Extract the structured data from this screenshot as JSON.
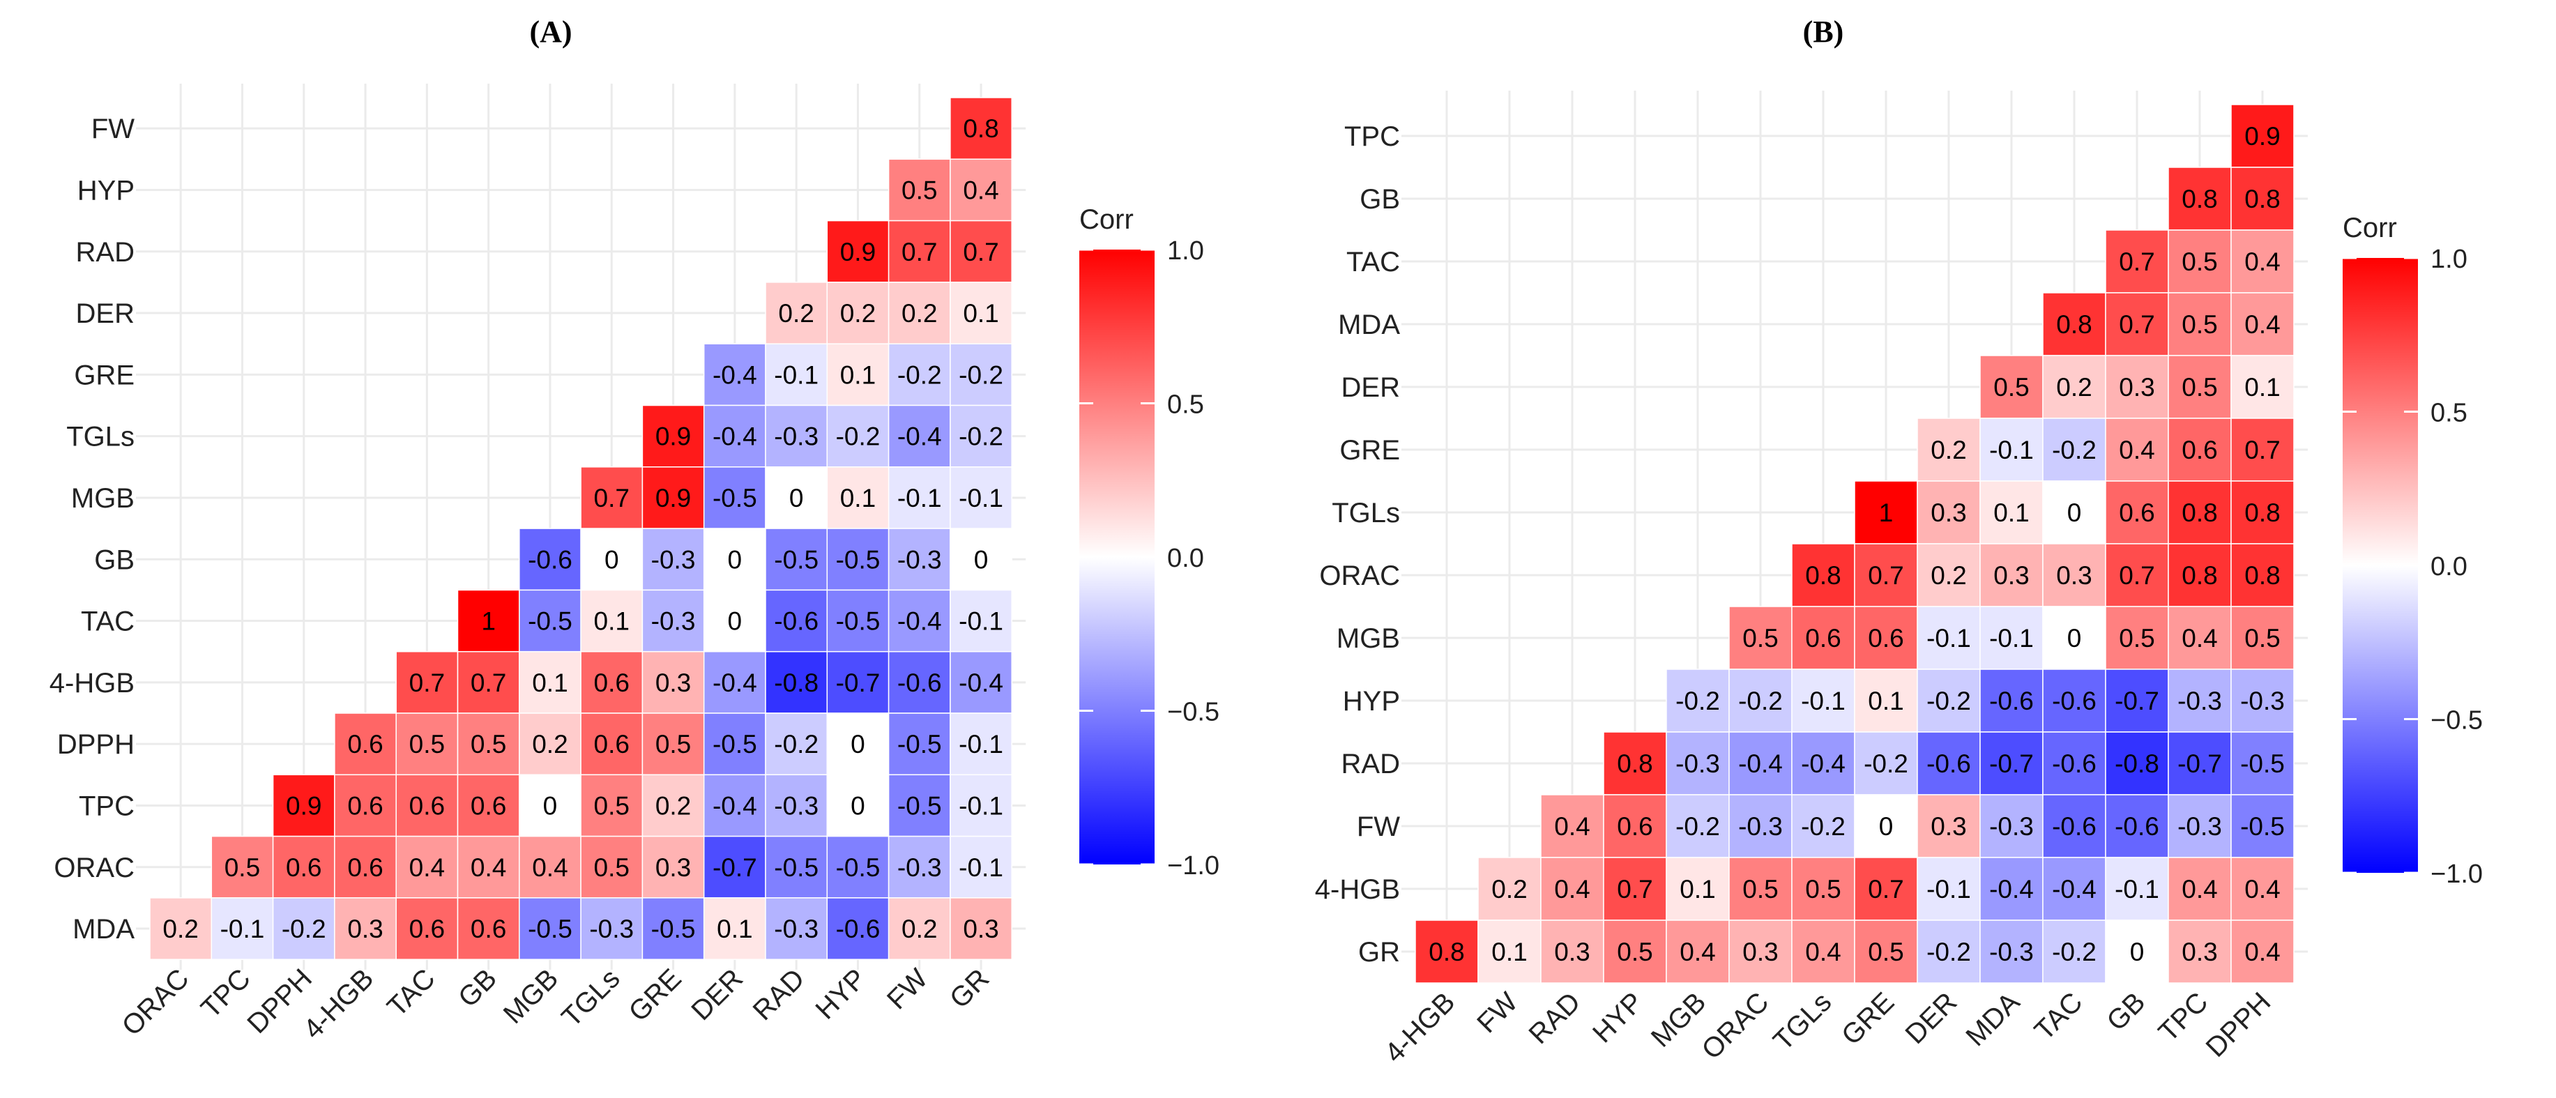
{
  "figure": {
    "panels": [
      "(A)",
      "(B)"
    ],
    "legend_title": "Corr",
    "legend_ticks": [
      "1.0",
      "0.5",
      "0.0",
      "−0.5",
      "−1.0"
    ]
  },
  "chart_data": [
    {
      "type": "heatmap",
      "title": "(A)",
      "layout": "lower-triangle correlation matrix",
      "rows_top_to_bottom": [
        "FW",
        "HYP",
        "RAD",
        "DER",
        "GRE",
        "TGLs",
        "MGB",
        "GB",
        "TAC",
        "4-HGB",
        "DPPH",
        "TPC",
        "ORAC",
        "MDA"
      ],
      "columns": [
        "ORAC",
        "TPC",
        "DPPH",
        "4-HGB",
        "TAC",
        "GB",
        "MGB",
        "TGLs",
        "GRE",
        "DER",
        "RAD",
        "HYP",
        "FW",
        "GR"
      ],
      "values": [
        [
          0.8
        ],
        [
          0.5,
          0.4
        ],
        [
          0.9,
          0.7,
          0.7
        ],
        [
          0.2,
          0.2,
          0.2,
          0.1
        ],
        [
          -0.4,
          -0.1,
          0.1,
          -0.2,
          -0.2
        ],
        [
          0.9,
          -0.4,
          -0.3,
          -0.2,
          -0.4,
          -0.2
        ],
        [
          0.7,
          0.9,
          -0.5,
          0,
          0.1,
          -0.1,
          -0.1
        ],
        [
          -0.6,
          0,
          -0.3,
          0,
          -0.5,
          -0.5,
          -0.3,
          0
        ],
        [
          1,
          -0.5,
          0.1,
          -0.3,
          0,
          -0.6,
          -0.5,
          -0.4,
          -0.1
        ],
        [
          0.7,
          0.7,
          0.1,
          0.6,
          0.3,
          -0.4,
          -0.8,
          -0.7,
          -0.6,
          -0.4
        ],
        [
          0.6,
          0.5,
          0.5,
          0.2,
          0.6,
          0.5,
          -0.5,
          -0.2,
          0,
          -0.5,
          -0.1
        ],
        [
          0.9,
          0.6,
          0.6,
          0.6,
          0,
          0.5,
          0.2,
          -0.4,
          -0.3,
          0,
          -0.5,
          -0.1
        ],
        [
          0.5,
          0.6,
          0.6,
          0.4,
          0.4,
          0.4,
          0.5,
          0.3,
          -0.7,
          -0.5,
          -0.5,
          -0.3,
          -0.1
        ],
        [
          0.2,
          -0.1,
          -0.2,
          0.3,
          0.6,
          0.6,
          -0.5,
          -0.3,
          -0.5,
          0.1,
          -0.3,
          -0.6,
          0.2,
          0.3
        ]
      ],
      "legend": {
        "title": "Corr",
        "range": [
          -1,
          1
        ],
        "colors": [
          "#0000ff",
          "#ffffff",
          "#ff0000"
        ]
      }
    },
    {
      "type": "heatmap",
      "title": "(B)",
      "layout": "lower-triangle correlation matrix",
      "rows_top_to_bottom": [
        "TPC",
        "GB",
        "TAC",
        "MDA",
        "DER",
        "GRE",
        "TGLs",
        "ORAC",
        "MGB",
        "HYP",
        "RAD",
        "FW",
        "4-HGB",
        "GR"
      ],
      "columns": [
        "4-HGB",
        "FW",
        "RAD",
        "HYP",
        "MGB",
        "ORAC",
        "TGLs",
        "GRE",
        "DER",
        "MDA",
        "TAC",
        "GB",
        "TPC",
        "DPPH"
      ],
      "values": [
        [
          0.9
        ],
        [
          0.8,
          0.8
        ],
        [
          0.7,
          0.5,
          0.4
        ],
        [
          0.8,
          0.7,
          0.5,
          0.4
        ],
        [
          0.5,
          0.2,
          0.3,
          0.5,
          0.1
        ],
        [
          0.2,
          -0.1,
          -0.2,
          0.4,
          0.6,
          0.7
        ],
        [
          1,
          0.3,
          0.1,
          0,
          0.6,
          0.8,
          0.8
        ],
        [
          0.8,
          0.7,
          0.2,
          0.3,
          0.3,
          0.7,
          0.8,
          0.8
        ],
        [
          0.5,
          0.6,
          0.6,
          -0.1,
          -0.1,
          0,
          0.5,
          0.4,
          0.5
        ],
        [
          -0.2,
          -0.2,
          -0.1,
          0.1,
          -0.2,
          -0.6,
          -0.6,
          -0.7,
          -0.3,
          -0.3
        ],
        [
          0.8,
          -0.3,
          -0.4,
          -0.4,
          -0.2,
          -0.6,
          -0.7,
          -0.6,
          -0.8,
          -0.7,
          -0.5
        ],
        [
          0.4,
          0.6,
          -0.2,
          -0.3,
          -0.2,
          0,
          0.3,
          -0.3,
          -0.6,
          -0.6,
          -0.3,
          -0.5
        ],
        [
          0.2,
          0.4,
          0.7,
          0.1,
          0.5,
          0.5,
          0.7,
          -0.1,
          -0.4,
          -0.4,
          -0.1,
          0.4,
          0.4
        ],
        [
          0.8,
          0.1,
          0.3,
          0.5,
          0.4,
          0.3,
          0.4,
          0.5,
          -0.2,
          -0.3,
          -0.2,
          0,
          0.3,
          0.4
        ]
      ],
      "legend": {
        "title": "Corr",
        "range": [
          -1,
          1
        ],
        "colors": [
          "#0000ff",
          "#ffffff",
          "#ff0000"
        ]
      }
    }
  ]
}
